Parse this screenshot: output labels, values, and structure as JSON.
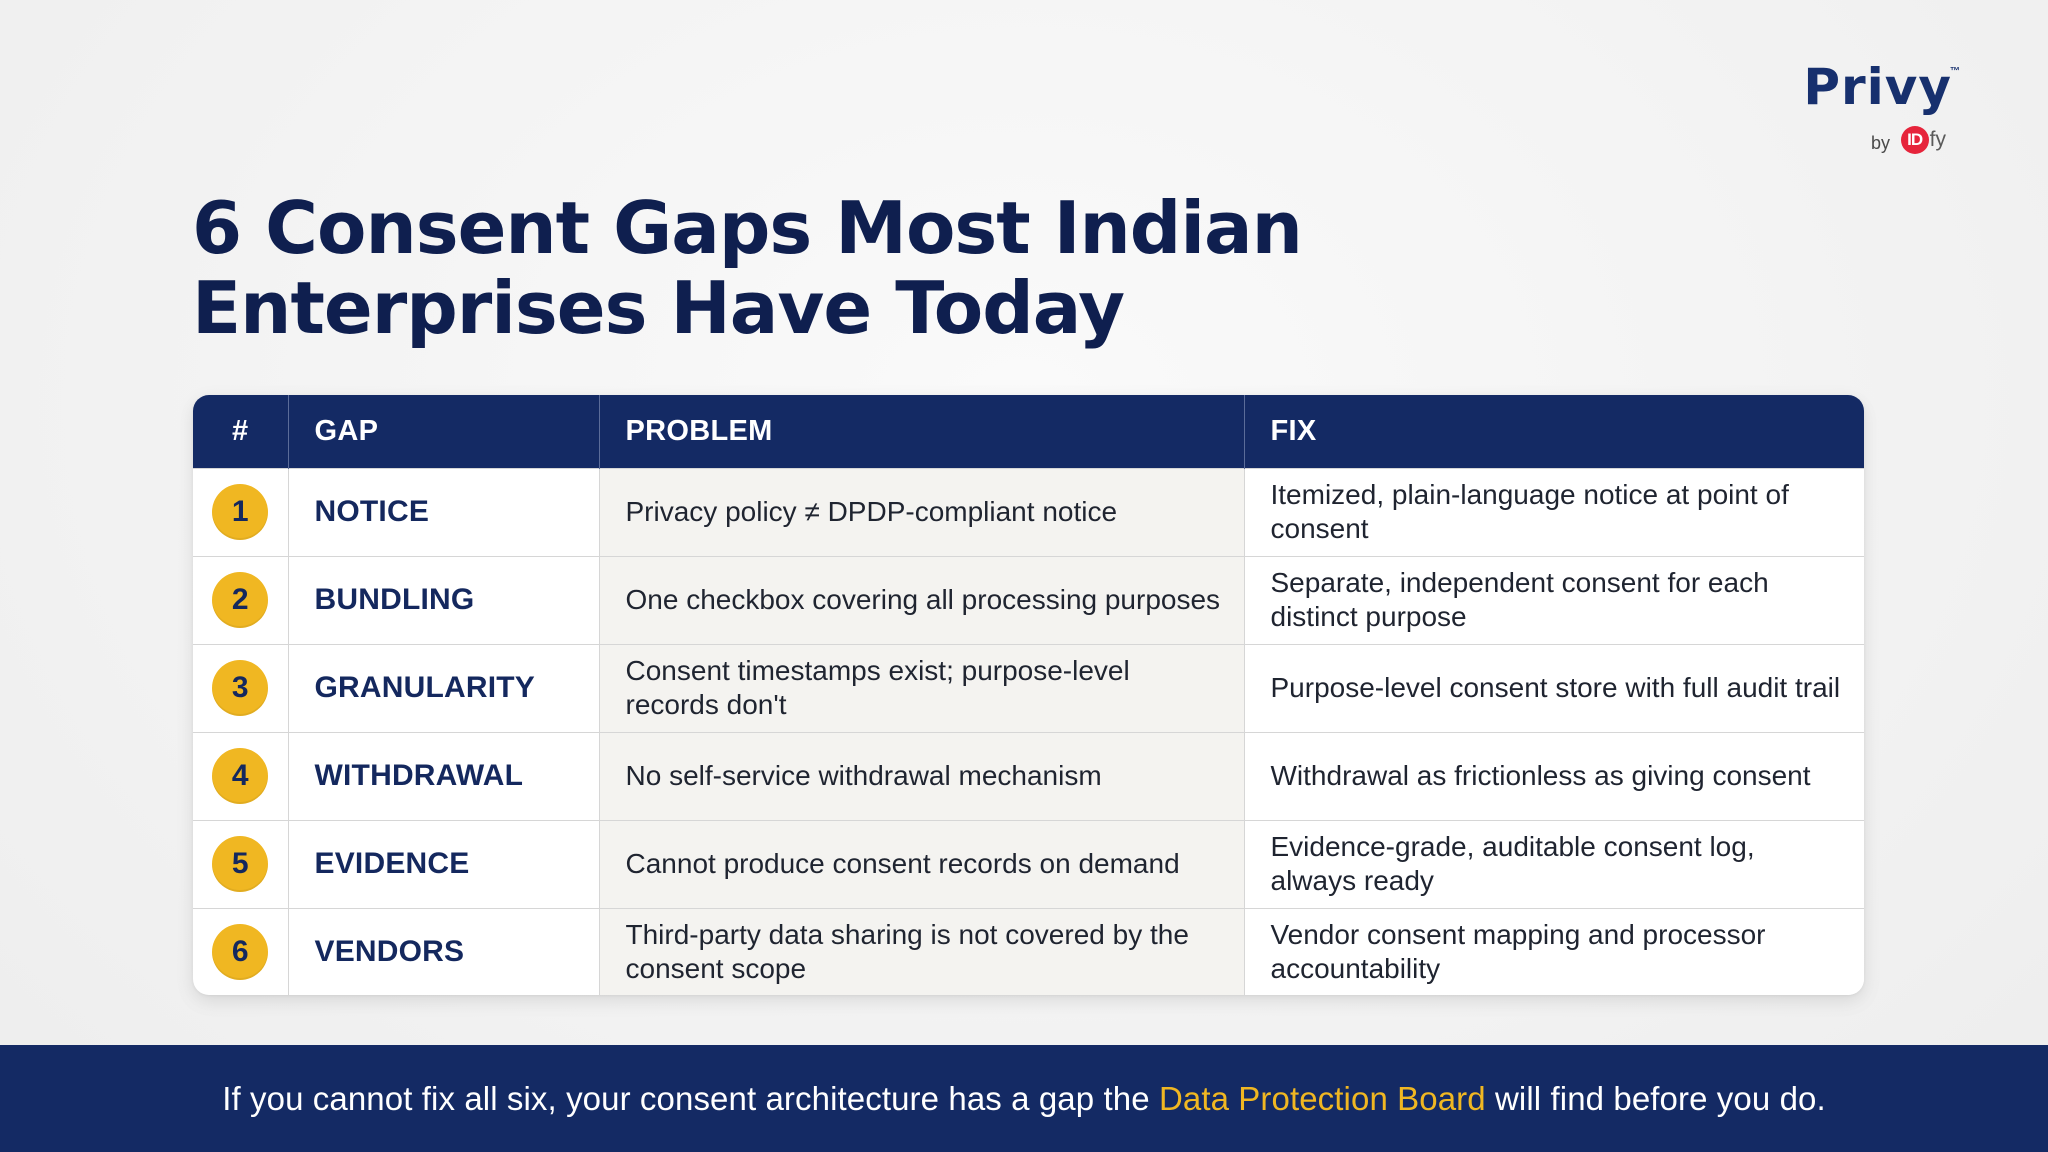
{
  "brand": {
    "wordmark": "Privy",
    "tm": "™",
    "by": "by",
    "idfy_mark": "ID",
    "idfy_suffix": "fy"
  },
  "title": "6 Consent Gaps Most Indian\nEnterprises Have Today",
  "table": {
    "headers": [
      "#",
      "GAP",
      "PROBLEM",
      "FIX"
    ],
    "rows": [
      {
        "num": "1",
        "gap": "NOTICE",
        "problem": "Privacy policy ≠ DPDP-compliant notice",
        "fix": "Itemized, plain-language notice at point of consent"
      },
      {
        "num": "2",
        "gap": "BUNDLING",
        "problem": "One checkbox covering all processing purposes",
        "fix": "Separate, independent consent for each distinct purpose"
      },
      {
        "num": "3",
        "gap": "GRANULARITY",
        "problem": "Consent timestamps exist; purpose-level records don't",
        "fix": "Purpose-level consent store with full audit trail"
      },
      {
        "num": "4",
        "gap": "WITHDRAWAL",
        "problem": "No self-service withdrawal mechanism",
        "fix": "Withdrawal as frictionless as giving consent"
      },
      {
        "num": "5",
        "gap": "EVIDENCE",
        "problem": "Cannot produce consent records on demand",
        "fix": "Evidence-grade, auditable consent log, always ready"
      },
      {
        "num": "6",
        "gap": "VENDORS",
        "problem": "Third-party data sharing is not covered by the consent scope",
        "fix": "Vendor consent mapping and processor accountability"
      }
    ]
  },
  "footer": {
    "before": "If you cannot fix all six, your consent architecture has a gap the ",
    "highlight": "Data Protection Board",
    "after": " will find before you do."
  },
  "colors": {
    "navy": "#142a64",
    "title_navy": "#0f1f4f",
    "gold": "#f0b722",
    "idfy_red": "#e6243b",
    "background": "#f3f3f3"
  }
}
